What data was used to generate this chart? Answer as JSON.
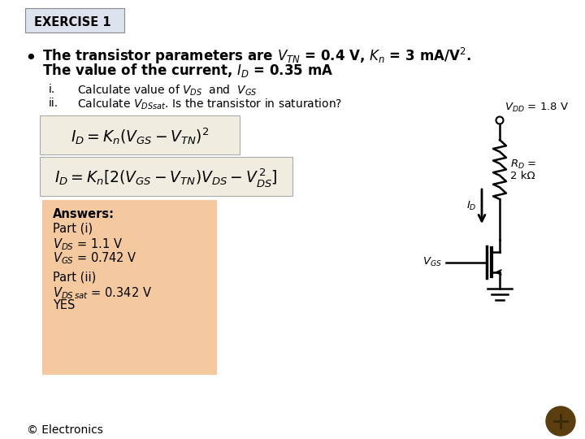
{
  "bg_color": "#ffffff",
  "title_box_color": "#dce3ef",
  "title_text": "EXERCISE 1",
  "bullet_line1": "The transistor parameters are $V_{TN}$ = 0.4 V, $K_n$ = 3 mA/V$^2$.",
  "bullet_line2": "The value of the current, $I_D$ = 0.35 mA",
  "sub_i": "i.        Calculate value of $V_{DS}$  and  $V_{GS}$",
  "sub_ii": "ii.       Calculate $V_{DSsat}$. Is the transistor in saturation?",
  "eq1": "$I_D = K_n\\left(V_{GS} - V_{TN}\\right)^2$",
  "eq2": "$I_D = K_n[2(V_{GS} - V_{TN})V_{DS} - V_{DS}^{\\,2}]$",
  "ans_bg": "#f5c9a0",
  "ans_title": "Answers:",
  "ans_part_i": "Part (i)",
  "ans_vds": "$V_{DS}$ = 1.1 V",
  "ans_vgs": "$V_{GS}$ = 0.742 V",
  "ans_part_ii": "Part (ii)",
  "ans_vdss": "$V_{DS\\,sat}$ = 0.342 V",
  "ans_yes": "YES",
  "footer": "© Electronics",
  "circuit_vdd": "$V_{DD}$ = 1.8 V",
  "circuit_rd": "$R_D$ =",
  "circuit_rd2": "2 kΩ",
  "circuit_id": "$I_D$",
  "circuit_vgs": "$V_{GS}$"
}
